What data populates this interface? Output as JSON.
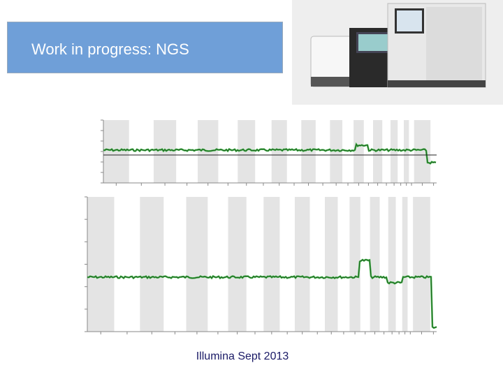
{
  "header": {
    "title": "Work in progress: NGS"
  },
  "footer": {
    "caption": "Illumina Sept 2013"
  }
}
